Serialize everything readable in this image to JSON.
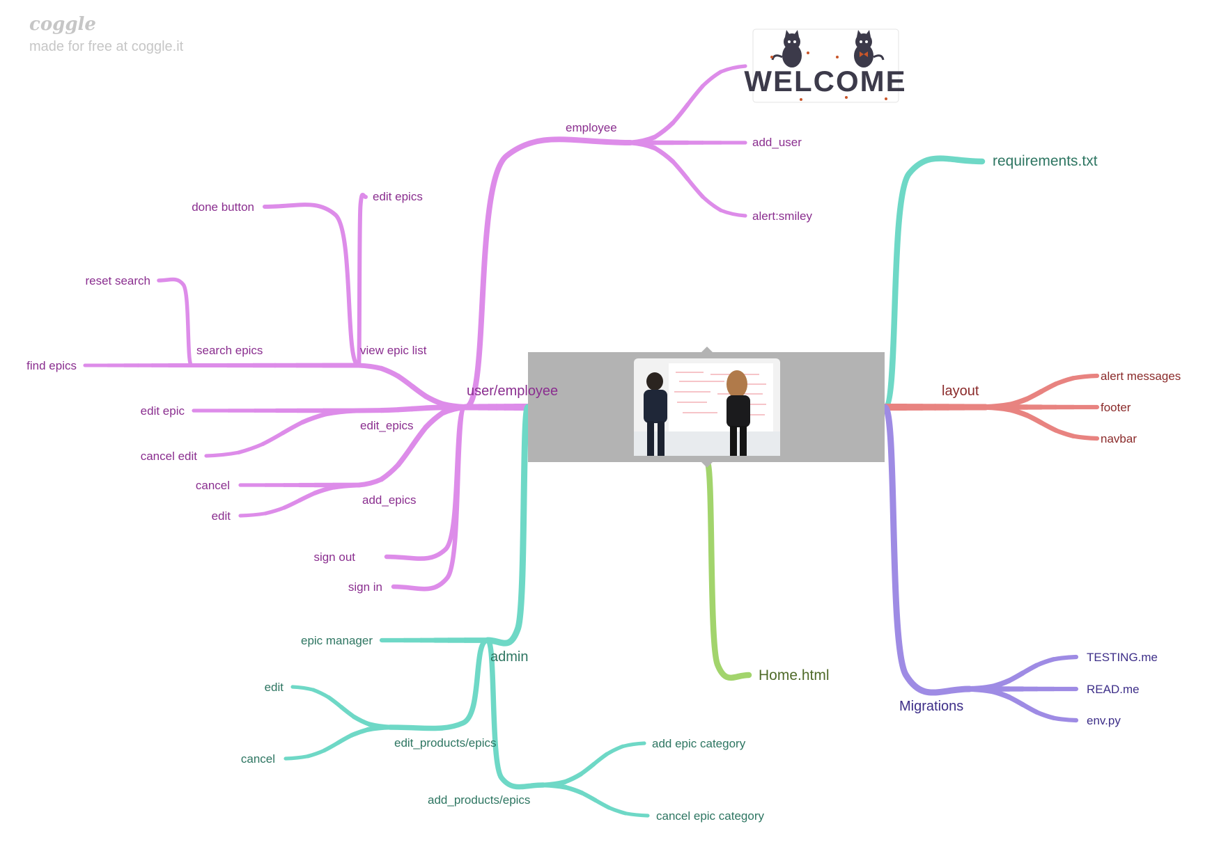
{
  "brand": {
    "logo": "coggle",
    "made_for_free": "made for free at coggle.it"
  },
  "colors": {
    "pink": "#dd8ce9",
    "teal": "#6ed8c6",
    "green": "#a2d46c",
    "red": "#e88380",
    "violet": "#9e8be4",
    "pink_text": "#8a2e8f",
    "teal_text": "#2d7561",
    "green_text": "#4f6b2a",
    "red_text": "#8a2a2a",
    "violet_text": "#3d2e88"
  },
  "central": {
    "photo": "two people talking in front of a whiteboard"
  },
  "nodes": {
    "user_employee": "user/employee",
    "employee": "employee",
    "welcome_image": "WELCOME",
    "add_user": "add_user",
    "alert_smiley": "alert:smiley",
    "view_epic_list": "view epic list",
    "edit_epics_top": "edit epics",
    "done_button": "done button",
    "search_epics": "search epics",
    "reset_search": "reset search",
    "find_epics": "find epics",
    "edit_epics": "edit_epics",
    "edit_epic": "edit epic",
    "cancel_edit": "cancel edit",
    "add_epics": "add_epics",
    "cancel_pink": "cancel",
    "edit_pink": "edit",
    "sign_out": "sign out",
    "sign_in": "sign in",
    "admin": "admin",
    "epic_manager": "epic manager",
    "edit_products_epics": "edit_products/epics",
    "edit_teal": "edit",
    "cancel_teal": "cancel",
    "add_products_epics": "add_products/epics",
    "add_epic_category": "add epic category",
    "cancel_epic_category": "cancel epic category",
    "home_html": "Home.html",
    "requirements": "requirements.txt",
    "layout": "layout",
    "alert_messages": "alert messages",
    "footer": "footer",
    "navbar": "navbar",
    "migrations": "Migrations",
    "testing": "TESTING.me",
    "readme": "READ.me",
    "env": "env.py"
  }
}
